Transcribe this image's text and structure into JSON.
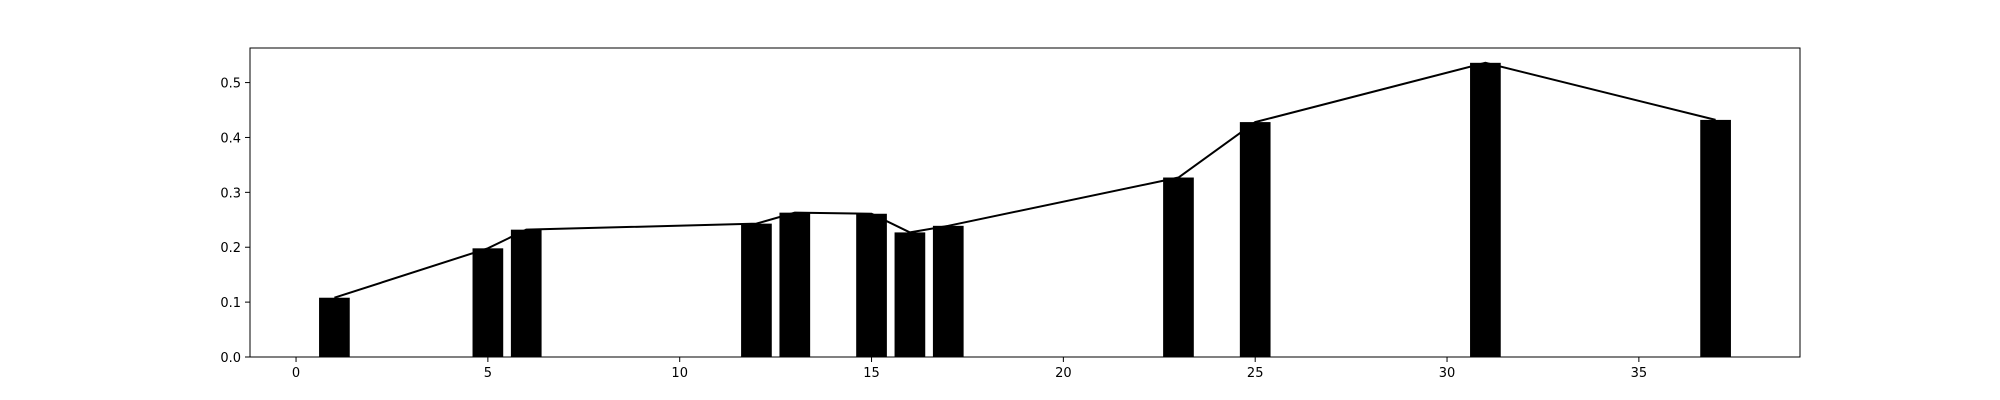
{
  "chart_data": {
    "type": "bar",
    "overlay": "line",
    "title": "",
    "xlabel": "",
    "ylabel": "",
    "x": [
      1,
      5,
      6,
      12,
      13,
      15,
      16,
      17,
      23,
      25,
      31,
      37
    ],
    "values": [
      0.108,
      0.198,
      0.232,
      0.243,
      0.263,
      0.261,
      0.227,
      0.239,
      0.327,
      0.428,
      0.536,
      0.432
    ],
    "xlim": [
      -1.2,
      39.2
    ],
    "ylim": [
      0,
      0.563
    ],
    "xticks": [
      0,
      5,
      10,
      15,
      20,
      25,
      30,
      35
    ],
    "xtick_labels": [
      "0",
      "5",
      "10",
      "15",
      "20",
      "25",
      "30",
      "35"
    ],
    "yticks": [
      0.0,
      0.1,
      0.2,
      0.3,
      0.4,
      0.5
    ],
    "ytick_labels": [
      "0.0",
      "0.1",
      "0.2",
      "0.3",
      "0.4",
      "0.5"
    ],
    "bar_width": 0.8,
    "grid": false,
    "legend": "none",
    "bar_color": "#000000",
    "line_color": "#000000"
  }
}
